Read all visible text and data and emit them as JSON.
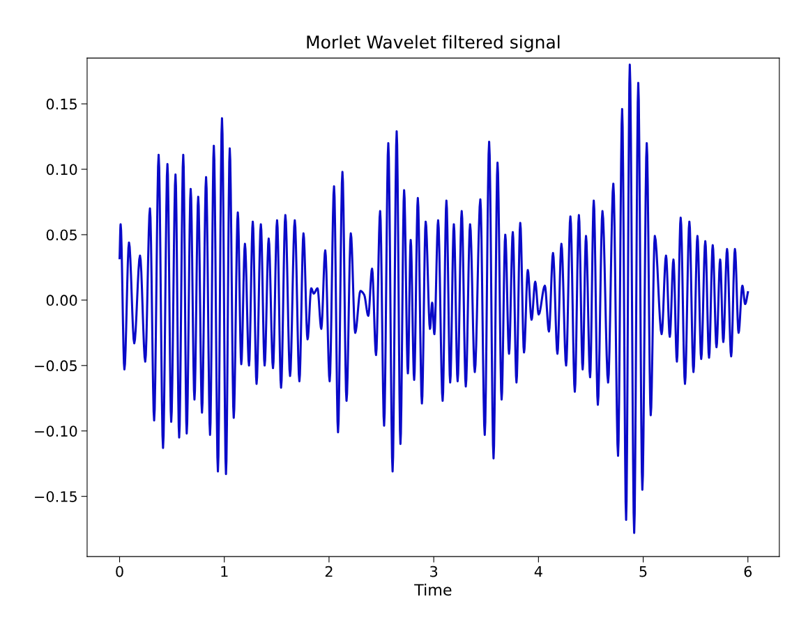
{
  "chart_data": {
    "type": "line",
    "title": "Morlet Wavelet filtered signal",
    "xlabel": "Time",
    "xlim": [
      -0.31,
      6.3
    ],
    "ylim": [
      -0.196,
      0.185
    ],
    "xticks": [
      0,
      1,
      2,
      3,
      4,
      5,
      6
    ],
    "yticks": [
      {
        "value": -0.15,
        "label": "−0.15"
      },
      {
        "value": -0.1,
        "label": "−0.10"
      },
      {
        "value": -0.05,
        "label": "−0.05"
      },
      {
        "value": 0,
        "label": "0.00"
      },
      {
        "value": 0.05,
        "label": "0.05"
      },
      {
        "value": 0.1,
        "label": "0.10"
      },
      {
        "value": 0.15,
        "label": "0.15"
      }
    ],
    "grid": false,
    "legend": false,
    "marker": "none",
    "line_style": "solid",
    "series": [
      {
        "color": "#0a0ac8",
        "x": [
          0,
          0.01,
          0.046,
          0.09,
          0.14,
          0.195,
          0.245,
          0.29,
          0.33,
          0.373,
          0.415,
          0.457,
          0.493,
          0.534,
          0.569,
          0.608,
          0.641,
          0.679,
          0.715,
          0.751,
          0.787,
          0.826,
          0.864,
          0.9,
          0.939,
          0.978,
          1.016,
          1.052,
          1.09,
          1.129,
          1.162,
          1.197,
          1.236,
          1.272,
          1.308,
          1.349,
          1.385,
          1.424,
          1.465,
          1.504,
          1.542,
          1.583,
          1.628,
          1.673,
          1.717,
          1.756,
          1.795,
          1.83,
          1.854,
          1.89,
          1.926,
          1.964,
          2.006,
          2.048,
          2.086,
          2.128,
          2.167,
          2.208,
          2.25,
          2.3,
          2.336,
          2.375,
          2.411,
          2.449,
          2.488,
          2.526,
          2.566,
          2.607,
          2.646,
          2.682,
          2.717,
          2.753,
          2.78,
          2.813,
          2.848,
          2.887,
          2.923,
          2.964,
          2.985,
          3.006,
          3.042,
          3.085,
          3.121,
          3.157,
          3.192,
          3.228,
          3.267,
          3.306,
          3.347,
          3.392,
          3.445,
          3.487,
          3.529,
          3.571,
          3.609,
          3.648,
          3.683,
          3.719,
          3.755,
          3.79,
          3.826,
          3.862,
          3.898,
          3.934,
          3.969,
          4.002,
          4.061,
          4.1,
          4.139,
          4.181,
          4.219,
          4.264,
          4.305,
          4.347,
          4.386,
          4.422,
          4.454,
          4.493,
          4.528,
          4.567,
          4.611,
          4.665,
          4.715,
          4.76,
          4.799,
          4.837,
          4.872,
          4.914,
          4.953,
          4.992,
          5.034,
          5.072,
          5.111,
          5.176,
          5.218,
          5.254,
          5.289,
          5.322,
          5.358,
          5.399,
          5.441,
          5.48,
          5.518,
          5.554,
          5.593,
          5.629,
          5.664,
          5.7,
          5.735,
          5.765,
          5.801,
          5.84,
          5.876,
          5.911,
          5.947,
          5.974,
          6.0
        ],
        "values": [
          0.032,
          0.058,
          -0.053,
          0.044,
          -0.033,
          0.034,
          -0.047,
          0.07,
          -0.092,
          0.111,
          -0.113,
          0.104,
          -0.093,
          0.096,
          -0.105,
          0.111,
          -0.102,
          0.085,
          -0.076,
          0.079,
          -0.086,
          0.094,
          -0.103,
          0.118,
          -0.131,
          0.139,
          -0.133,
          0.116,
          -0.09,
          0.067,
          -0.049,
          0.043,
          -0.05,
          0.06,
          -0.064,
          0.058,
          -0.05,
          0.047,
          -0.052,
          0.061,
          -0.067,
          0.065,
          -0.058,
          0.061,
          -0.062,
          0.051,
          -0.03,
          0.009,
          0.005,
          0.009,
          -0.022,
          0.038,
          -0.062,
          0.087,
          -0.101,
          0.098,
          -0.077,
          0.051,
          -0.025,
          0.007,
          0.004,
          -0.012,
          0.024,
          -0.042,
          0.068,
          -0.096,
          0.12,
          -0.131,
          0.129,
          -0.11,
          0.084,
          -0.056,
          0.046,
          -0.061,
          0.078,
          -0.079,
          0.06,
          -0.022,
          -0.002,
          -0.026,
          0.061,
          -0.077,
          0.076,
          -0.063,
          0.058,
          -0.062,
          0.068,
          -0.066,
          0.058,
          -0.055,
          0.077,
          -0.103,
          0.121,
          -0.121,
          0.105,
          -0.076,
          0.05,
          -0.041,
          0.052,
          -0.063,
          0.059,
          -0.04,
          0.023,
          -0.015,
          0.014,
          -0.011,
          0.011,
          -0.024,
          0.036,
          -0.041,
          0.043,
          -0.05,
          0.064,
          -0.07,
          0.065,
          -0.053,
          0.049,
          -0.059,
          0.076,
          -0.08,
          0.068,
          -0.063,
          0.089,
          -0.119,
          0.146,
          -0.168,
          0.18,
          -0.178,
          0.166,
          -0.145,
          0.12,
          -0.088,
          0.049,
          -0.026,
          0.034,
          -0.028,
          0.031,
          -0.047,
          0.063,
          -0.064,
          0.06,
          -0.055,
          0.049,
          -0.045,
          0.045,
          -0.044,
          0.042,
          -0.036,
          0.031,
          -0.032,
          0.039,
          -0.043,
          0.039,
          -0.025,
          0.011,
          -0.003,
          0.006
        ]
      }
    ]
  }
}
